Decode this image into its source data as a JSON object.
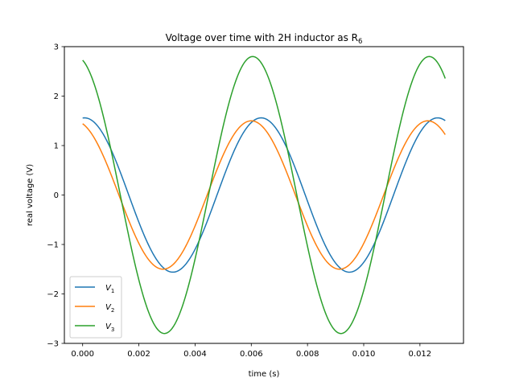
{
  "chart_data": {
    "type": "line",
    "title": "Voltage over time with 2H inductor as R",
    "title_subscript": "6",
    "xlabel": "time (s)",
    "ylabel": "real voltage (V)",
    "xlim": [
      -0.00065,
      0.01355
    ],
    "ylim": [
      -3,
      3
    ],
    "xticks": [
      0.0,
      0.002,
      0.004,
      0.006,
      0.008,
      0.01,
      0.012
    ],
    "xtick_labels": [
      "0.000",
      "0.002",
      "0.004",
      "0.006",
      "0.008",
      "0.010",
      "0.012"
    ],
    "yticks": [
      -3,
      -2,
      -1,
      0,
      1,
      2,
      3
    ],
    "ytick_labels": [
      "−3",
      "−2",
      "−1",
      "0",
      "1",
      "2",
      "3"
    ],
    "grid": false,
    "legend_position": "lower-left",
    "x_range": [
      0.0,
      0.0129
    ],
    "period": 0.00628,
    "series": [
      {
        "name": "V",
        "subscript": "1",
        "color": "#1f77b4",
        "amplitude": 1.56,
        "peak_time": 0.00635
      },
      {
        "name": "V",
        "subscript": "2",
        "color": "#ff7f0e",
        "amplitude": 1.5,
        "peak_time": 0.006
      },
      {
        "name": "V",
        "subscript": "3",
        "color": "#2ca02c",
        "amplitude": 2.8,
        "peak_time": 0.00605
      }
    ]
  }
}
